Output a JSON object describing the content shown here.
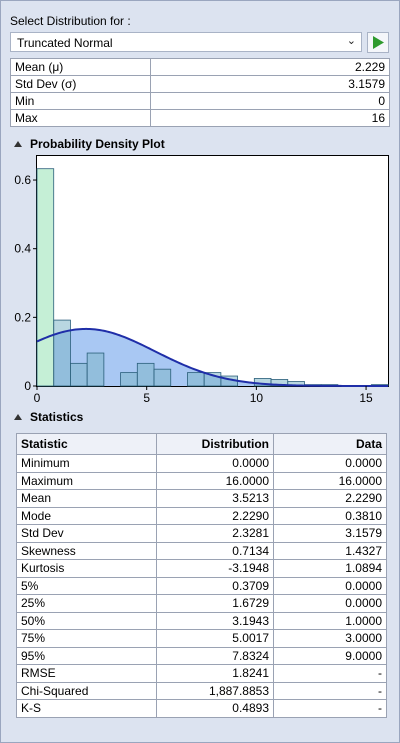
{
  "select_label": "Select Distribution for :",
  "distribution": {
    "selected": "Truncated Normal"
  },
  "params": [
    {
      "name": "Mean (μ)",
      "value": "2.229"
    },
    {
      "name": "Std Dev (σ)",
      "value": "3.1579"
    },
    {
      "name": "Min",
      "value": "0"
    },
    {
      "name": "Max",
      "value": "16"
    }
  ],
  "pdf_section": {
    "title": "Probability Density Plot"
  },
  "stats_section": {
    "title": "Statistics"
  },
  "chart_data": {
    "type": "bar",
    "title": "",
    "xlim": [
      0,
      16
    ],
    "ylim": [
      0,
      0.67
    ],
    "xticks": [
      0,
      5,
      10,
      15
    ],
    "yticks": [
      0,
      0.2,
      0.4,
      0.6
    ],
    "ytick_labels": [
      "0",
      "0.2",
      "0.4",
      "0.6"
    ],
    "bin_width": 0.762,
    "histogram": [
      {
        "x0": 0.0,
        "value": 0.633
      },
      {
        "x0": 0.762,
        "value": 0.192
      },
      {
        "x0": 1.524,
        "value": 0.066
      },
      {
        "x0": 2.286,
        "value": 0.096
      },
      {
        "x0": 3.048,
        "value": 0.0
      },
      {
        "x0": 3.81,
        "value": 0.039
      },
      {
        "x0": 4.572,
        "value": 0.066
      },
      {
        "x0": 5.334,
        "value": 0.049
      },
      {
        "x0": 6.096,
        "value": 0.0
      },
      {
        "x0": 6.858,
        "value": 0.039
      },
      {
        "x0": 7.62,
        "value": 0.039
      },
      {
        "x0": 8.382,
        "value": 0.029
      },
      {
        "x0": 9.144,
        "value": 0.0
      },
      {
        "x0": 9.906,
        "value": 0.022
      },
      {
        "x0": 10.668,
        "value": 0.019
      },
      {
        "x0": 11.43,
        "value": 0.013
      },
      {
        "x0": 12.192,
        "value": 0.004
      },
      {
        "x0": 12.954,
        "value": 0.004
      },
      {
        "x0": 13.716,
        "value": 0.0
      },
      {
        "x0": 14.478,
        "value": 0.0
      },
      {
        "x0": 15.24,
        "value": 0.004
      }
    ],
    "density_curve": {
      "type": "truncated_normal",
      "mu": 2.229,
      "sigma": 3.1579,
      "min": 0,
      "max": 16
    },
    "colors": {
      "first_bar_fill": "#c5efd6",
      "bar_fill": "#80b7c8",
      "bar_stroke": "#2a5e7a",
      "curve_fill": "#a9c8f3",
      "curve_stroke": "#1f2ea8"
    }
  },
  "stats": {
    "headers": [
      "Statistic",
      "Distribution",
      "Data"
    ],
    "rows": [
      [
        "Minimum",
        "0.0000",
        "0.0000"
      ],
      [
        "Maximum",
        "16.0000",
        "16.0000"
      ],
      [
        "Mean",
        "3.5213",
        "2.2290"
      ],
      [
        "Mode",
        "2.2290",
        "0.3810"
      ],
      [
        "Std Dev",
        "2.3281",
        "3.1579"
      ],
      [
        "Skewness",
        "0.7134",
        "1.4327"
      ],
      [
        "Kurtosis",
        "-3.1948",
        "1.0894"
      ],
      [
        "5%",
        "0.3709",
        "0.0000"
      ],
      [
        "25%",
        "1.6729",
        "0.0000"
      ],
      [
        "50%",
        "3.1943",
        "1.0000"
      ],
      [
        "75%",
        "5.0017",
        "3.0000"
      ],
      [
        "95%",
        "7.8324",
        "9.0000"
      ],
      [
        "RMSE",
        "1.8241",
        "-"
      ],
      [
        "Chi-Squared",
        "1,887.8853",
        "-"
      ],
      [
        "K-S",
        "0.4893",
        "-"
      ]
    ]
  }
}
